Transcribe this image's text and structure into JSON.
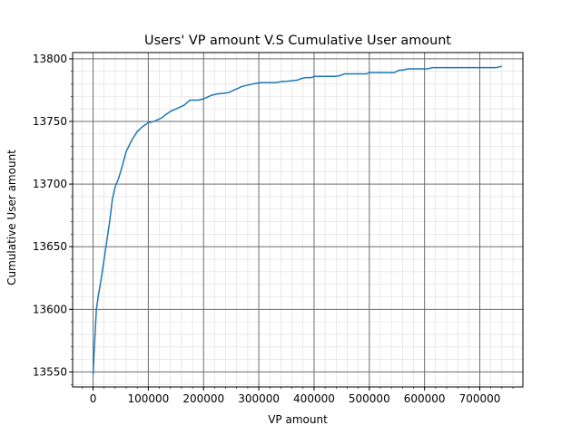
{
  "chart_data": {
    "type": "line",
    "title": "Users' VP amount V.S Cumulative User amount",
    "xlabel": "VP amount",
    "ylabel": "Cumulative User amount",
    "xlim": [
      -37000,
      778000
    ],
    "ylim": [
      13538,
      13805
    ],
    "xticks": [
      0,
      100000,
      200000,
      300000,
      400000,
      500000,
      600000,
      700000
    ],
    "xtick_labels": [
      "0",
      "100000",
      "200000",
      "300000",
      "400000",
      "500000",
      "600000",
      "700000"
    ],
    "yticks": [
      13550,
      13600,
      13650,
      13700,
      13750,
      13800
    ],
    "ytick_labels": [
      "13550",
      "13600",
      "13650",
      "13700",
      "13750",
      "13800"
    ],
    "grid": true,
    "minor_grid": true,
    "series": [
      {
        "color": "#1f77b4",
        "x": [
          0,
          3000,
          6000,
          10000,
          15000,
          20000,
          25000,
          30000,
          35000,
          40000,
          45000,
          50000,
          60000,
          70000,
          80000,
          90000,
          100000,
          110000,
          125000,
          130000,
          140000,
          150000,
          165000,
          175000,
          190000,
          200000,
          215000,
          225000,
          245000,
          255000,
          270000,
          280000,
          290000,
          305000,
          320000,
          330000,
          345000,
          350000,
          370000,
          375000,
          385000,
          395000,
          400000,
          410000,
          420000,
          440000,
          450000,
          455000,
          470000,
          485000,
          495000,
          500000,
          510000,
          520000,
          535000,
          545000,
          555000,
          560000,
          570000,
          580000,
          595000,
          605000,
          615000,
          625000,
          640000,
          655000,
          670000,
          690000,
          705000,
          720000,
          730000,
          740000
        ],
        "y": [
          13548,
          13575,
          13600,
          13612,
          13625,
          13640,
          13655,
          13670,
          13688,
          13698,
          13703,
          13710,
          13726,
          13735,
          13742,
          13746,
          13749,
          13750,
          13753,
          13755,
          13758,
          13760,
          13763,
          13767,
          13767,
          13768,
          13771,
          13772,
          13773,
          13775,
          13778,
          13779,
          13780,
          13781,
          13781,
          13781,
          13782,
          13782,
          13783,
          13784,
          13785,
          13785,
          13786,
          13786,
          13786,
          13786,
          13787,
          13788,
          13788,
          13788,
          13788,
          13789,
          13789,
          13789,
          13789,
          13789,
          13791,
          13791,
          13792,
          13792,
          13792,
          13792,
          13793,
          13793,
          13793,
          13793,
          13793,
          13793,
          13793,
          13793,
          13793,
          13794
        ]
      }
    ]
  }
}
